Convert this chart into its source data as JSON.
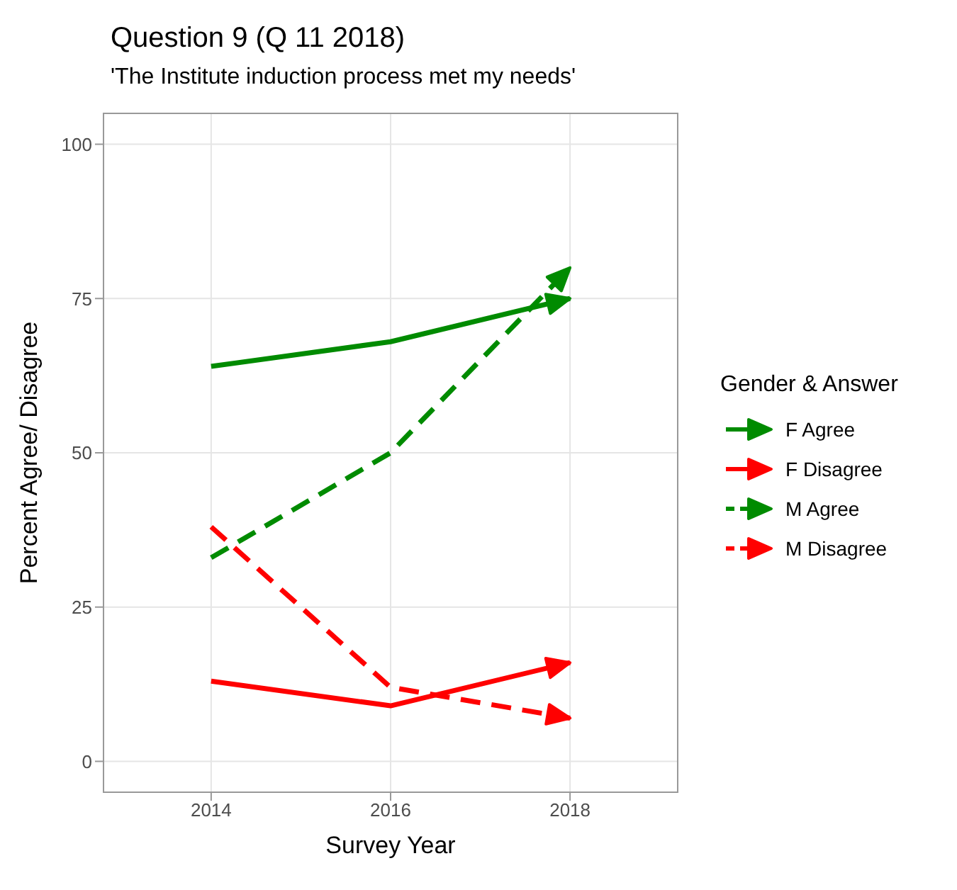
{
  "chart_data": {
    "type": "line",
    "title": "Question 9 (Q 11 2018)",
    "subtitle": "'The Institute induction process met my needs'",
    "xlabel": "Survey Year",
    "ylabel": "Percent Agree/ Disagree",
    "legend_title": "Gender & Answer",
    "x": [
      2014,
      2016,
      2018
    ],
    "series": [
      {
        "name": "F Agree",
        "color": "#008b00",
        "values": [
          64,
          68,
          75
        ],
        "line_style": "solid"
      },
      {
        "name": "F Disagree",
        "color": "#ff0000",
        "values": [
          13,
          9,
          16
        ],
        "line_style": "solid"
      },
      {
        "name": "M Agree",
        "color": "#008b00",
        "values": [
          33,
          50,
          80
        ],
        "line_style": "dashed"
      },
      {
        "name": "M Disagree",
        "color": "#ff0000",
        "values": [
          38,
          12,
          7
        ],
        "line_style": "dashed"
      }
    ],
    "xlim": [
      2012.8,
      2019.2
    ],
    "xticks": [
      2014,
      2016,
      2018
    ],
    "ylim": [
      -5,
      105
    ],
    "yticks": [
      0,
      25,
      50,
      75,
      100
    ],
    "grid": true,
    "legend": "right"
  }
}
